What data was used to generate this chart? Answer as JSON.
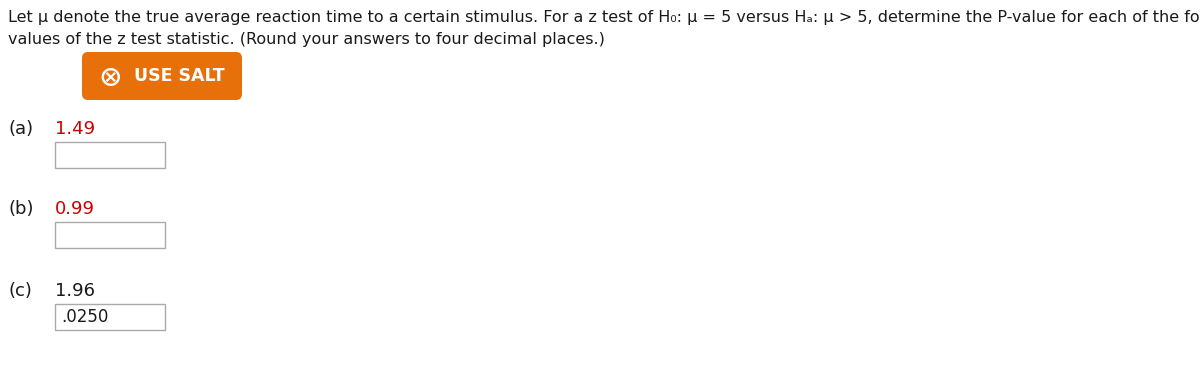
{
  "title_line1": "Let μ denote the true average reaction time to a certain stimulus. For a z test of H₀: μ = 5 versus Hₐ: μ > 5, determine the P-value for each of the following",
  "title_line2": "values of the z test statistic. (Round your answers to four decimal places.)",
  "button_text": "  USE SALT",
  "button_color": "#E8700A",
  "button_text_color": "#FFFFFF",
  "part_a_label": "(a)   1.49",
  "part_a_value_color": "#CC0000",
  "part_b_label": "(b)   0.99",
  "part_b_value_color": "#CC0000",
  "part_c_label": "(c)   1.96",
  "part_c_value_color": "#1a1a1a",
  "part_c_answer": ".0250",
  "background_color": "#FFFFFF",
  "text_color": "#1a1a1a",
  "input_box_color": "#FFFFFF",
  "input_box_border": "#AAAAAA",
  "fig_width": 12.0,
  "fig_height": 3.71,
  "dpi": 100
}
